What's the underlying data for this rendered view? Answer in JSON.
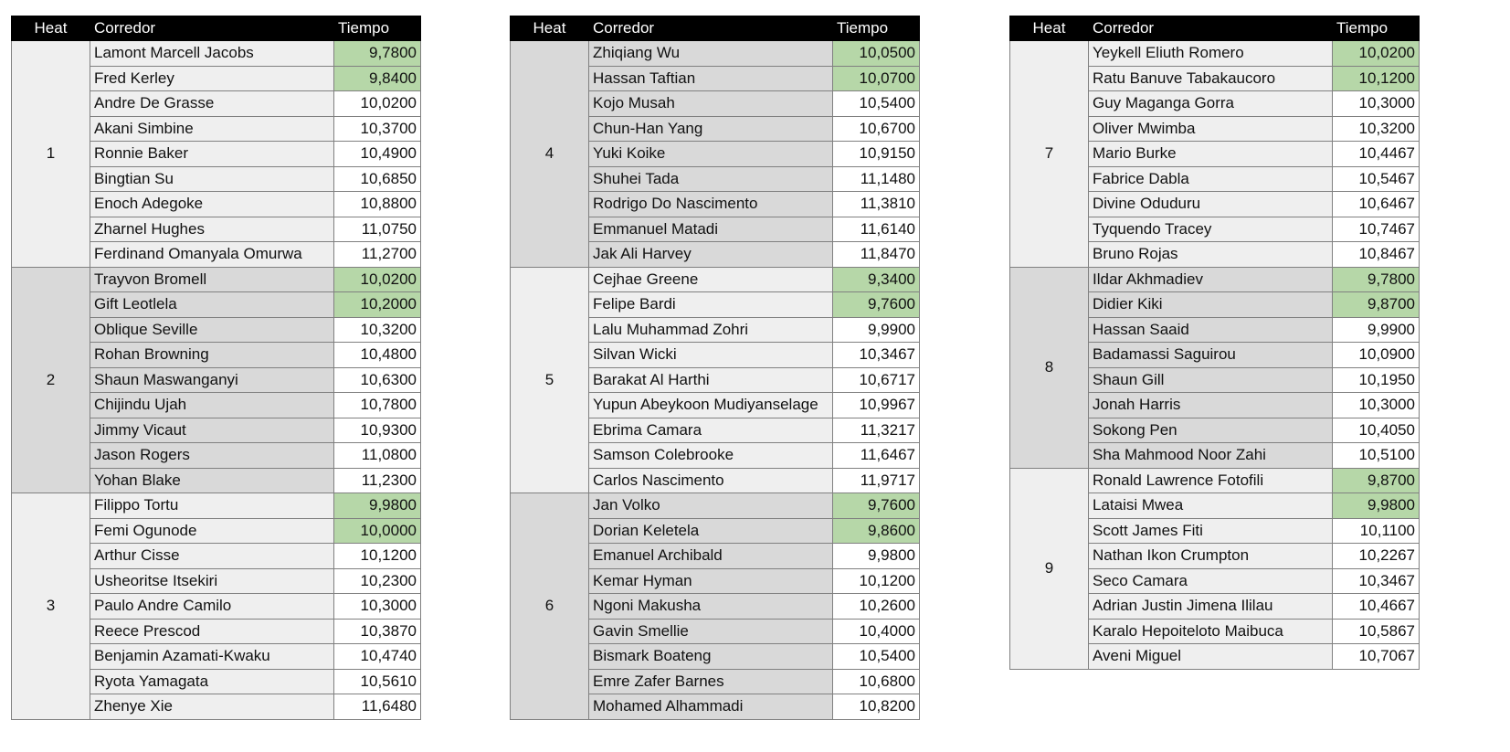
{
  "headers": {
    "heat": "Heat",
    "runner": "Corredor",
    "time": "Tiempo"
  },
  "colors": {
    "header_bg": "#000000",
    "heat_light": "#efefef",
    "heat_dark": "#d9d9d9",
    "qualified": "#b6d7a8",
    "time_default": "#ffffff"
  },
  "tables": [
    {
      "heats": [
        {
          "number": "1",
          "shade": "light",
          "rows": [
            {
              "runner": "Lamont Marcell Jacobs",
              "time": "9,7800",
              "qualified": true
            },
            {
              "runner": "Fred Kerley",
              "time": "9,8400",
              "qualified": true
            },
            {
              "runner": "Andre De Grasse",
              "time": "10,0200",
              "qualified": false
            },
            {
              "runner": "Akani Simbine",
              "time": "10,3700",
              "qualified": false
            },
            {
              "runner": "Ronnie Baker",
              "time": "10,4900",
              "qualified": false
            },
            {
              "runner": "Bingtian Su",
              "time": "10,6850",
              "qualified": false
            },
            {
              "runner": "Enoch Adegoke",
              "time": "10,8800",
              "qualified": false
            },
            {
              "runner": "Zharnel Hughes",
              "time": "11,0750",
              "qualified": false
            },
            {
              "runner": "Ferdinand Omanyala Omurwa",
              "time": "11,2700",
              "qualified": false
            }
          ]
        },
        {
          "number": "2",
          "shade": "dark",
          "rows": [
            {
              "runner": "Trayvon Bromell",
              "time": "10,0200",
              "qualified": true
            },
            {
              "runner": "Gift Leotlela",
              "time": "10,2000",
              "qualified": true
            },
            {
              "runner": "Oblique Seville",
              "time": "10,3200",
              "qualified": false
            },
            {
              "runner": "Rohan Browning",
              "time": "10,4800",
              "qualified": false
            },
            {
              "runner": "Shaun Maswanganyi",
              "time": "10,6300",
              "qualified": false
            },
            {
              "runner": "Chijindu Ujah",
              "time": "10,7800",
              "qualified": false
            },
            {
              "runner": "Jimmy Vicaut",
              "time": "10,9300",
              "qualified": false
            },
            {
              "runner": "Jason Rogers",
              "time": "11,0800",
              "qualified": false
            },
            {
              "runner": "Yohan Blake",
              "time": "11,2300",
              "qualified": false
            }
          ]
        },
        {
          "number": "3",
          "shade": "light",
          "rows": [
            {
              "runner": "Filippo Tortu",
              "time": "9,9800",
              "qualified": true
            },
            {
              "runner": "Femi Ogunode",
              "time": "10,0000",
              "qualified": true
            },
            {
              "runner": "Arthur Cisse",
              "time": "10,1200",
              "qualified": false
            },
            {
              "runner": "Usheoritse Itsekiri",
              "time": "10,2300",
              "qualified": false
            },
            {
              "runner": "Paulo Andre Camilo",
              "time": "10,3000",
              "qualified": false
            },
            {
              "runner": "Reece Prescod",
              "time": "10,3870",
              "qualified": false
            },
            {
              "runner": "Benjamin Azamati-Kwaku",
              "time": "10,4740",
              "qualified": false
            },
            {
              "runner": "Ryota Yamagata",
              "time": "10,5610",
              "qualified": false
            },
            {
              "runner": "Zhenye Xie",
              "time": "11,6480",
              "qualified": false
            }
          ]
        }
      ]
    },
    {
      "heats": [
        {
          "number": "4",
          "shade": "dark",
          "rows": [
            {
              "runner": "Zhiqiang Wu",
              "time": "10,0500",
              "qualified": true
            },
            {
              "runner": "Hassan Taftian",
              "time": "10,0700",
              "qualified": true
            },
            {
              "runner": "Kojo Musah",
              "time": "10,5400",
              "qualified": false
            },
            {
              "runner": "Chun-Han Yang",
              "time": "10,6700",
              "qualified": false
            },
            {
              "runner": "Yuki Koike",
              "time": "10,9150",
              "qualified": false
            },
            {
              "runner": "Shuhei Tada",
              "time": "11,1480",
              "qualified": false
            },
            {
              "runner": "Rodrigo Do Nascimento",
              "time": "11,3810",
              "qualified": false
            },
            {
              "runner": "Emmanuel Matadi",
              "time": "11,6140",
              "qualified": false
            },
            {
              "runner": "Jak Ali Harvey",
              "time": "11,8470",
              "qualified": false
            }
          ]
        },
        {
          "number": "5",
          "shade": "light",
          "rows": [
            {
              "runner": "Cejhae Greene",
              "time": "9,3400",
              "qualified": true
            },
            {
              "runner": "Felipe Bardi",
              "time": "9,7600",
              "qualified": true
            },
            {
              "runner": "Lalu Muhammad Zohri",
              "time": "9,9900",
              "qualified": false
            },
            {
              "runner": "Silvan Wicki",
              "time": "10,3467",
              "qualified": false
            },
            {
              "runner": "Barakat Al Harthi",
              "time": "10,6717",
              "qualified": false
            },
            {
              "runner": "Yupun Abeykoon Mudiyanselage",
              "time": "10,9967",
              "qualified": false
            },
            {
              "runner": "Ebrima Camara",
              "time": "11,3217",
              "qualified": false
            },
            {
              "runner": "Samson Colebrooke",
              "time": "11,6467",
              "qualified": false
            },
            {
              "runner": "Carlos Nascimento",
              "time": "11,9717",
              "qualified": false
            }
          ]
        },
        {
          "number": "6",
          "shade": "dark",
          "rows": [
            {
              "runner": "Jan Volko",
              "time": "9,7600",
              "qualified": true
            },
            {
              "runner": "Dorian Keletela",
              "time": "9,8600",
              "qualified": true
            },
            {
              "runner": "Emanuel Archibald",
              "time": "9,9800",
              "qualified": false
            },
            {
              "runner": "Kemar Hyman",
              "time": "10,1200",
              "qualified": false
            },
            {
              "runner": "Ngoni Makusha",
              "time": "10,2600",
              "qualified": false
            },
            {
              "runner": "Gavin Smellie",
              "time": "10,4000",
              "qualified": false
            },
            {
              "runner": "Bismark Boateng",
              "time": "10,5400",
              "qualified": false
            },
            {
              "runner": "Emre Zafer Barnes",
              "time": "10,6800",
              "qualified": false
            },
            {
              "runner": "Mohamed Alhammadi",
              "time": "10,8200",
              "qualified": false
            }
          ]
        }
      ]
    },
    {
      "heats": [
        {
          "number": "7",
          "shade": "light",
          "rows": [
            {
              "runner": "Yeykell Eliuth Romero",
              "time": "10,0200",
              "qualified": true
            },
            {
              "runner": "Ratu Banuve Tabakaucoro",
              "time": "10,1200",
              "qualified": true
            },
            {
              "runner": "Guy Maganga Gorra",
              "time": "10,3000",
              "qualified": false
            },
            {
              "runner": "Oliver Mwimba",
              "time": "10,3200",
              "qualified": false
            },
            {
              "runner": "Mario Burke",
              "time": "10,4467",
              "qualified": false
            },
            {
              "runner": "Fabrice Dabla",
              "time": "10,5467",
              "qualified": false
            },
            {
              "runner": "Divine Oduduru",
              "time": "10,6467",
              "qualified": false
            },
            {
              "runner": "Tyquendo Tracey",
              "time": "10,7467",
              "qualified": false
            },
            {
              "runner": "Bruno Rojas",
              "time": "10,8467",
              "qualified": false
            }
          ]
        },
        {
          "number": "8",
          "shade": "dark",
          "rows": [
            {
              "runner": "Ildar Akhmadiev",
              "time": "9,7800",
              "qualified": true
            },
            {
              "runner": "Didier Kiki",
              "time": "9,8700",
              "qualified": true
            },
            {
              "runner": "Hassan Saaid",
              "time": "9,9900",
              "qualified": false
            },
            {
              "runner": "Badamassi Saguirou",
              "time": "10,0900",
              "qualified": false
            },
            {
              "runner": "Shaun Gill",
              "time": "10,1950",
              "qualified": false
            },
            {
              "runner": "Jonah Harris",
              "time": "10,3000",
              "qualified": false
            },
            {
              "runner": "Sokong Pen",
              "time": "10,4050",
              "qualified": false
            },
            {
              "runner": "Sha Mahmood Noor Zahi",
              "time": "10,5100",
              "qualified": false
            }
          ]
        },
        {
          "number": "9",
          "shade": "light",
          "rows": [
            {
              "runner": "Ronald Lawrence Fotofili",
              "time": "9,8700",
              "qualified": true
            },
            {
              "runner": "Lataisi Mwea",
              "time": "9,9800",
              "qualified": true
            },
            {
              "runner": "Scott James Fiti",
              "time": "10,1100",
              "qualified": false
            },
            {
              "runner": "Nathan Ikon Crumpton",
              "time": "10,2267",
              "qualified": false
            },
            {
              "runner": "Seco Camara",
              "time": "10,3467",
              "qualified": false
            },
            {
              "runner": "Adrian Justin Jimena Ililau",
              "time": "10,4667",
              "qualified": false
            },
            {
              "runner": "Karalo Hepoiteloto Maibuca",
              "time": "10,5867",
              "qualified": false
            },
            {
              "runner": "Aveni Miguel",
              "time": "10,7067",
              "qualified": false
            }
          ]
        }
      ]
    }
  ]
}
